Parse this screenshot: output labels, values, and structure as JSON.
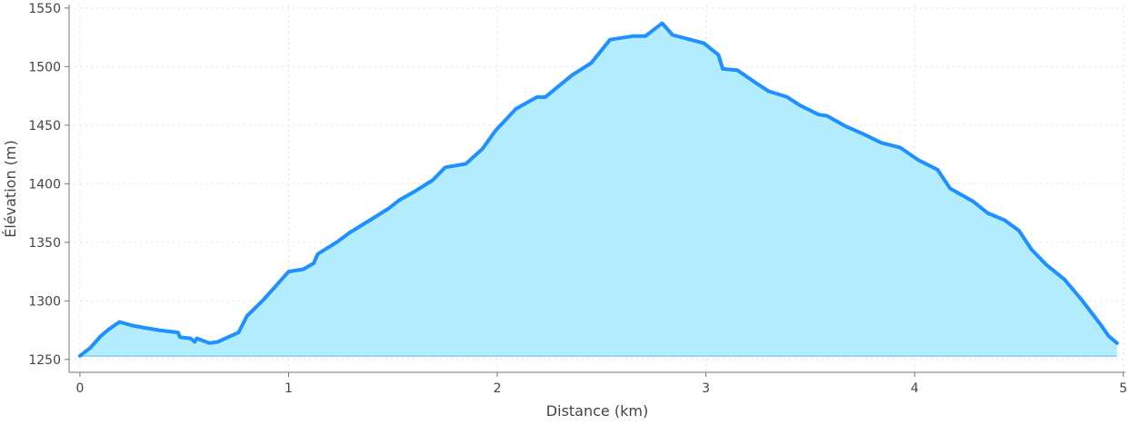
{
  "chart_data": {
    "type": "area",
    "title": "",
    "xlabel": "Distance (km)",
    "ylabel": "Élévation (m)",
    "xlim": [
      -0.052,
      5.01
    ],
    "ylim": [
      1239,
      1553
    ],
    "baseline": 1253,
    "grid": true,
    "xticks": [
      0,
      1,
      2,
      3,
      4,
      5
    ],
    "xtick_labels": [
      "0",
      "1",
      "2",
      "3",
      "4",
      "5"
    ],
    "yticks": [
      1250,
      1300,
      1350,
      1400,
      1450,
      1500,
      1550
    ],
    "ytick_labels": [
      "1250",
      "1300",
      "1350",
      "1400",
      "1450",
      "1500",
      "1550"
    ],
    "colors": {
      "line": "#1e90ff",
      "fill": "#b2ecfd",
      "fill_edge": "#8fd8f5",
      "grid": "#e2e2e2",
      "axis": "#777777"
    },
    "series": [
      {
        "name": "Élévation",
        "x": [
          0,
          0.05,
          0.1,
          0.14,
          0.19,
          0.25,
          0.31,
          0.38,
          0.47,
          0.48,
          0.53,
          0.55,
          0.56,
          0.62,
          0.66,
          0.71,
          0.76,
          0.8,
          0.88,
          0.96,
          1.0,
          1.07,
          1.12,
          1.14,
          1.23,
          1.29,
          1.4,
          1.48,
          1.53,
          1.6,
          1.69,
          1.75,
          1.85,
          1.93,
          1.99,
          2.09,
          2.19,
          2.23,
          2.36,
          2.45,
          2.54,
          2.65,
          2.71,
          2.79,
          2.84,
          2.99,
          3.06,
          3.08,
          3.15,
          3.24,
          3.3,
          3.39,
          3.45,
          3.54,
          3.58,
          3.67,
          3.76,
          3.84,
          3.93,
          4.02,
          4.11,
          4.17,
          4.28,
          4.35,
          4.43,
          4.5,
          4.56,
          4.63,
          4.72,
          4.8,
          4.89,
          4.93,
          4.97
        ],
        "y": [
          1253,
          1260,
          1270,
          1276,
          1282,
          1279,
          1277,
          1275,
          1273,
          1269,
          1268,
          1265,
          1268,
          1264,
          1265,
          1269,
          1273,
          1287,
          1301,
          1317,
          1325,
          1327,
          1332,
          1340,
          1350,
          1358,
          1370,
          1379,
          1386,
          1393,
          1403,
          1414,
          1417,
          1430,
          1445,
          1464,
          1474,
          1474,
          1493,
          1503,
          1523,
          1526,
          1526,
          1537,
          1527,
          1520,
          1510,
          1498,
          1497,
          1486,
          1479,
          1474,
          1467,
          1459,
          1458,
          1449,
          1442,
          1435,
          1431,
          1420,
          1412,
          1396,
          1385,
          1375,
          1369,
          1360,
          1344,
          1331,
          1318,
          1301,
          1280,
          1270,
          1264
        ]
      }
    ]
  }
}
